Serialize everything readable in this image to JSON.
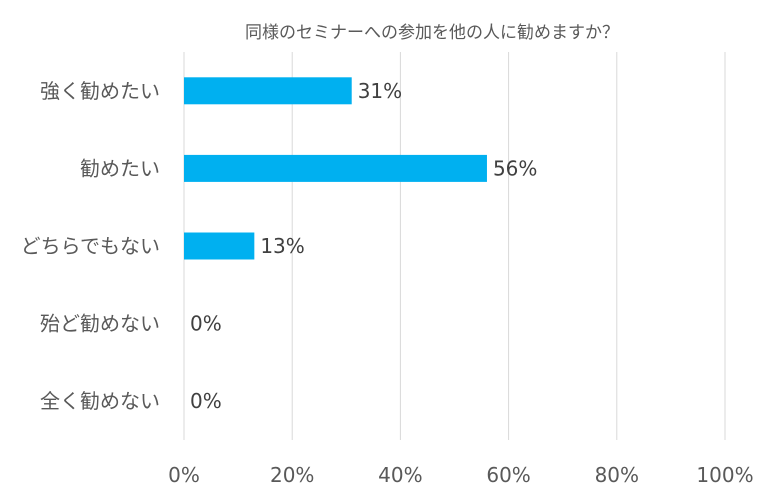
{
  "chart_data": {
    "type": "bar",
    "orientation": "horizontal",
    "title": "同様のセミナーへの参加を他の人に勧めますか？",
    "categories": [
      "強く勧めたい",
      "勧めたい",
      "どちらでもない",
      "殆ど勧めない",
      "全く勧めない"
    ],
    "values": [
      31,
      56,
      13,
      0,
      0
    ],
    "value_unit": "%",
    "data_labels": [
      "31%",
      "56%",
      "13%",
      "0%",
      "0%"
    ],
    "xlim": [
      0,
      100
    ],
    "xticks": [
      "0%",
      "20%",
      "40%",
      "60%",
      "80%",
      "100%"
    ],
    "xtick_values": [
      0,
      20,
      40,
      60,
      80,
      100
    ],
    "xlabel": "",
    "ylabel": "",
    "grid": "vertical",
    "legend": "none",
    "colors": {
      "bar": "#00B0F0",
      "grid": "#D9D9D9",
      "text": "#595959"
    }
  }
}
